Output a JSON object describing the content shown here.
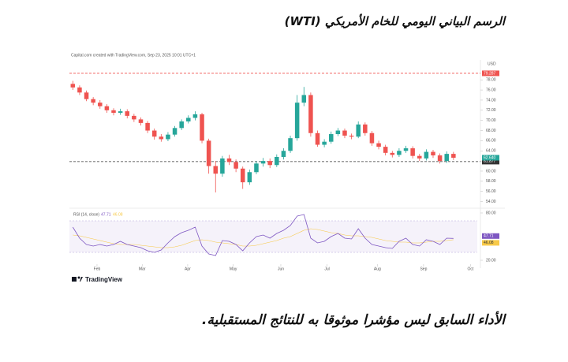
{
  "header": {
    "title": "الرسم البياني اليومي للخام الأمريكي (WTI)"
  },
  "chart_data": {
    "type": "candlestick",
    "attribution": "Capital.com created with TradingView.com, Sep 23, 2025 10:01 UTC+1",
    "currency": "USD",
    "xlim": [
      0,
      60
    ],
    "xticks": [
      {
        "value": 4.06,
        "label": "Feb"
      },
      {
        "value": 10.7,
        "label": "Mar"
      },
      {
        "value": 17.4,
        "label": "Apr"
      },
      {
        "value": 24.1,
        "label": "May"
      },
      {
        "value": 31.1,
        "label": "Jun"
      },
      {
        "value": 37.9,
        "label": "Jul"
      },
      {
        "value": 45.3,
        "label": "Aug"
      },
      {
        "value": 52.1,
        "label": "Sep"
      },
      {
        "value": 59.0,
        "label": "Oct"
      }
    ],
    "ylim": [
      53,
      81.3
    ],
    "yticks": [
      {
        "value": 54,
        "label": "54.00"
      },
      {
        "value": 56,
        "label": "56.00"
      },
      {
        "value": 58,
        "label": "58.00"
      },
      {
        "value": 60,
        "label": "60.00"
      },
      {
        "value": 62,
        "label": "62.00"
      },
      {
        "value": 64,
        "label": "64.00"
      },
      {
        "value": 66,
        "label": "66.00"
      },
      {
        "value": 68,
        "label": "68.00"
      },
      {
        "value": 70,
        "label": "70.00"
      },
      {
        "value": 72,
        "label": "72.00"
      },
      {
        "value": 74,
        "label": "74.00"
      },
      {
        "value": 76,
        "label": "76.00"
      },
      {
        "value": 78,
        "label": "78.00"
      }
    ],
    "up_color": "#26a69a",
    "down_color": "#ef5350",
    "open": [
      77.2,
      76.5,
      75.5,
      74.2,
      73.5,
      72.8,
      72.0,
      71.5,
      71.8,
      70.9,
      70.2,
      69.5,
      68.0,
      66.8,
      66.3,
      67.2,
      68.5,
      69.8,
      70.5,
      71.2,
      66.0,
      61.0,
      59.5,
      62.5,
      61.8,
      60.5,
      57.8,
      59.8,
      61.5,
      62.0,
      61.2,
      62.8,
      64.0,
      66.5,
      73.5,
      75.0,
      67.5,
      65.2,
      65.8,
      67.3,
      68.0,
      67.0,
      66.8,
      69.2,
      67.5,
      65.5,
      64.8,
      63.6,
      63.2,
      64.0,
      64.5,
      63.0,
      62.5,
      63.8,
      63.1,
      62.0,
      63.4
    ],
    "high": [
      77.8,
      76.9,
      75.9,
      74.6,
      74.0,
      73.2,
      72.4,
      72.3,
      72.2,
      71.3,
      70.6,
      69.9,
      68.4,
      67.3,
      67.7,
      68.9,
      70.2,
      71.0,
      71.8,
      71.5,
      66.4,
      62.0,
      63.0,
      63.2,
      62.3,
      60.9,
      60.3,
      62.0,
      62.6,
      62.5,
      63.3,
      64.5,
      67.0,
      75.0,
      76.6,
      75.5,
      68.0,
      66.3,
      67.8,
      68.5,
      68.4,
      67.4,
      69.8,
      69.6,
      67.9,
      66.0,
      65.2,
      64.0,
      64.5,
      65.0,
      64.9,
      63.4,
      64.3,
      64.2,
      63.5,
      63.9,
      63.8
    ],
    "low": [
      76.0,
      75.0,
      73.8,
      73.0,
      72.3,
      71.5,
      71.0,
      71.1,
      70.4,
      69.7,
      69.0,
      67.5,
      66.2,
      65.8,
      65.9,
      66.8,
      68.1,
      69.4,
      70.0,
      65.5,
      59.5,
      55.8,
      58.9,
      61.2,
      59.8,
      56.5,
      57.3,
      59.4,
      60.9,
      60.6,
      60.8,
      62.3,
      63.6,
      66.0,
      72.8,
      66.8,
      64.8,
      64.7,
      65.4,
      66.9,
      66.5,
      66.3,
      66.5,
      67.0,
      65.0,
      64.3,
      63.1,
      62.7,
      62.8,
      63.6,
      62.5,
      62.0,
      62.1,
      62.6,
      61.5,
      61.6,
      62.2
    ],
    "close": [
      76.5,
      75.5,
      74.2,
      73.5,
      72.8,
      72.0,
      71.5,
      71.8,
      70.9,
      70.2,
      69.5,
      68.0,
      66.8,
      66.3,
      67.2,
      68.5,
      69.8,
      70.5,
      71.2,
      66.0,
      61.0,
      59.5,
      62.5,
      61.8,
      60.5,
      57.8,
      59.8,
      61.5,
      62.0,
      61.2,
      62.8,
      64.0,
      66.5,
      73.5,
      75.0,
      67.5,
      65.2,
      65.8,
      67.3,
      68.0,
      67.0,
      66.8,
      69.2,
      67.5,
      65.5,
      64.8,
      63.6,
      63.2,
      64.0,
      64.5,
      63.0,
      62.5,
      63.8,
      63.1,
      62.0,
      63.4,
      62.64
    ],
    "price_lines": [
      {
        "value": 79.287,
        "label": "79.287",
        "color": "#ef5350"
      },
      {
        "value": 61.877,
        "label": "61.877",
        "color": "#333333"
      }
    ],
    "last_price": {
      "value": 62.64,
      "label": "62.640",
      "color": "#26a69a"
    },
    "rsi": {
      "name": "RSI (14, close)",
      "ylim": [
        15,
        85
      ],
      "yticks": [
        {
          "value": 80,
          "label": "80.00"
        },
        {
          "value": 20,
          "label": "20.00"
        }
      ],
      "band": [
        30,
        70
      ],
      "series": [
        {
          "name": "RSI",
          "color": "#7e57c2",
          "last_label": "47.71",
          "values": [
            62,
            48,
            40,
            38,
            40,
            38,
            40,
            44,
            40,
            38,
            36,
            32,
            30,
            33,
            42,
            50,
            55,
            58,
            62,
            38,
            28,
            26,
            45,
            44,
            40,
            32,
            42,
            50,
            52,
            48,
            54,
            58,
            64,
            76,
            78,
            48,
            42,
            44,
            50,
            54,
            48,
            47,
            60,
            48,
            40,
            38,
            36,
            35,
            44,
            48,
            40,
            38,
            46,
            44,
            40,
            48,
            47.71
          ]
        },
        {
          "name": "MA",
          "color": "#f7c948",
          "last_label": "46.08",
          "values": [
            52,
            51,
            49,
            47,
            45,
            43,
            41,
            40,
            40,
            40,
            39,
            38,
            37,
            36,
            36,
            37,
            39,
            42,
            45,
            46,
            45,
            43,
            42,
            41,
            40,
            38,
            38,
            39,
            41,
            43,
            45,
            48,
            50,
            54,
            58,
            60,
            59,
            57,
            55,
            54,
            52,
            51,
            51,
            50,
            49,
            47,
            45,
            44,
            43,
            43,
            42,
            42,
            43,
            44,
            44,
            45,
            46.08
          ]
        }
      ]
    }
  },
  "footer": {
    "brand": "TradingView",
    "disclaimer": "الأداء السابق ليس مؤشرا موثوقا به للنتائج المستقبلية."
  }
}
